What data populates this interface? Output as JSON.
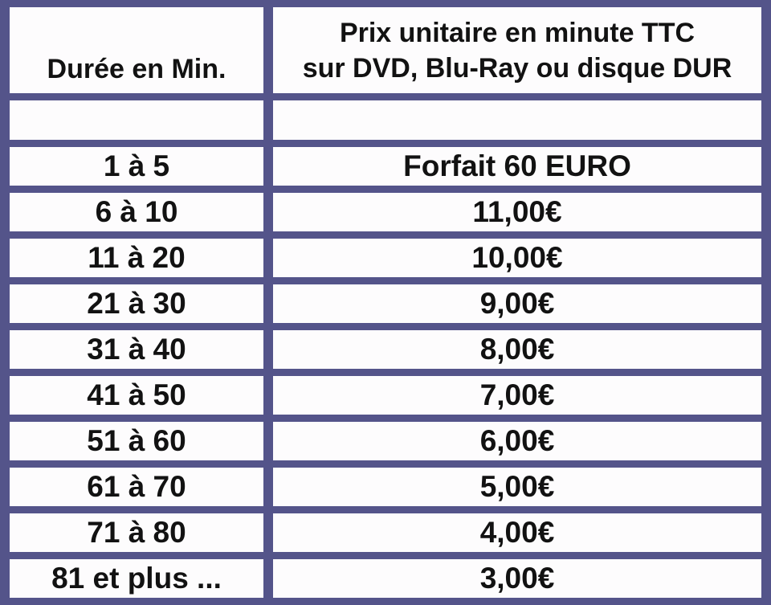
{
  "table": {
    "header": {
      "duration_label": "Durée en Min.",
      "price_label_line1": "Prix unitaire en minute TTC",
      "price_label_line2": "sur DVD, Blu-Ray ou disque DUR"
    },
    "rows": [
      {
        "duration": "1 à 5",
        "price": "Forfait 60 EURO"
      },
      {
        "duration": "6 à 10",
        "price": "11,00€"
      },
      {
        "duration": "11 à 20",
        "price": "10,00€"
      },
      {
        "duration": "21 à 30",
        "price": "9,00€"
      },
      {
        "duration": "31 à 40",
        "price": "8,00€"
      },
      {
        "duration": "41 à 50",
        "price": "7,00€"
      },
      {
        "duration": "51 à 60",
        "price": "6,00€"
      },
      {
        "duration": "61 à 70",
        "price": "5,00€"
      },
      {
        "duration": "71 à 80",
        "price": "4,00€"
      },
      {
        "duration": "81 et plus ...",
        "price": "3,00€"
      }
    ],
    "colors": {
      "border": "#54548a",
      "cell_background": "#fdfcfd",
      "text": "#121212"
    }
  },
  "chart_data": {
    "type": "table",
    "title": "",
    "columns": [
      "Durée en Min.",
      "Prix unitaire en minute TTC sur DVD, Blu-Ray ou disque DUR"
    ],
    "rows": [
      [
        "1 à 5",
        "Forfait 60 EURO"
      ],
      [
        "6 à 10",
        "11,00€"
      ],
      [
        "11 à 20",
        "10,00€"
      ],
      [
        "21 à 30",
        "9,00€"
      ],
      [
        "31 à 40",
        "8,00€"
      ],
      [
        "41 à 50",
        "7,00€"
      ],
      [
        "51 à 60",
        "6,00€"
      ],
      [
        "61 à 70",
        "5,00€"
      ],
      [
        "71 à 80",
        "4,00€"
      ],
      [
        "81 et plus ...",
        "3,00€"
      ]
    ]
  }
}
